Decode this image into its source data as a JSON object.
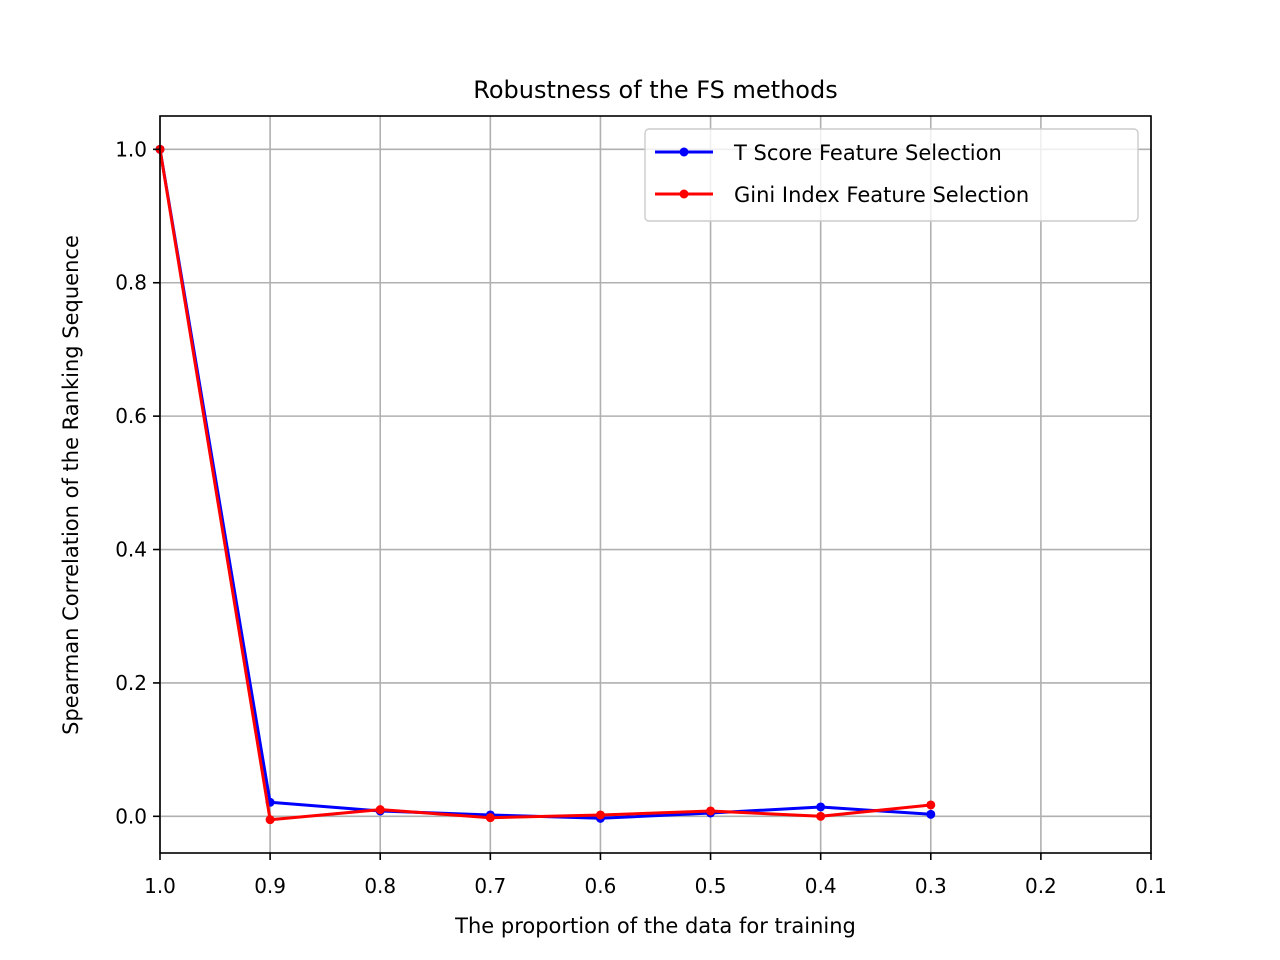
{
  "chart_data": {
    "type": "line",
    "title": "Robustness of the FS methods",
    "xlabel": "The proportion of the data for training",
    "ylabel": "Spearman Correlation of the Ranking Sequence",
    "xlim": [
      1.0,
      0.1
    ],
    "ylim": [
      -0.055,
      1.05
    ],
    "x_ticks": [
      1.0,
      0.9,
      0.8,
      0.7,
      0.6,
      0.5,
      0.4,
      0.3,
      0.2,
      0.1
    ],
    "x_tick_labels": [
      "1.0",
      "0.9",
      "0.8",
      "0.7",
      "0.6",
      "0.5",
      "0.4",
      "0.3",
      "0.2",
      "0.1"
    ],
    "y_ticks": [
      0.0,
      0.2,
      0.4,
      0.6,
      0.8,
      1.0
    ],
    "y_tick_labels": [
      "0.0",
      "0.2",
      "0.4",
      "0.6",
      "0.8",
      "1.0"
    ],
    "grid": true,
    "legend_position": "top-right",
    "x": [
      1.0,
      0.9,
      0.8,
      0.7,
      0.6,
      0.5,
      0.4,
      0.3
    ],
    "series": [
      {
        "name": "T Score Feature Selection",
        "color": "#0000ff",
        "values": [
          1.0,
          0.021,
          0.008,
          0.002,
          -0.003,
          0.005,
          0.014,
          0.003
        ]
      },
      {
        "name": "Gini Index Feature Selection",
        "color": "#ff0000",
        "values": [
          1.0,
          -0.005,
          0.01,
          -0.002,
          0.002,
          0.008,
          0.0,
          0.017
        ]
      }
    ]
  }
}
